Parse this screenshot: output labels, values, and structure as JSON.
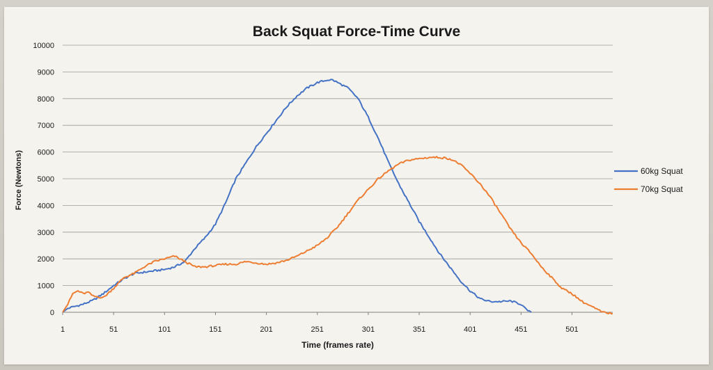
{
  "chart_data": {
    "type": "line",
    "title": "Back Squat Force-Time Curve",
    "xlabel": "Time (frames rate)",
    "ylabel": "Force (Newtons)",
    "xlim": [
      1,
      541
    ],
    "ylim": [
      0,
      10000
    ],
    "x_ticks": [
      "1",
      "51",
      "101",
      "151",
      "201",
      "251",
      "301",
      "351",
      "401",
      "451",
      "501"
    ],
    "y_ticks": [
      "0",
      "1000",
      "2000",
      "3000",
      "4000",
      "5000",
      "6000",
      "7000",
      "8000",
      "9000",
      "10000"
    ],
    "grid": true,
    "legend_position": "right",
    "series": [
      {
        "name": "60kg Squat",
        "color": "#4472c4",
        "x": [
          1,
          6,
          11,
          21,
          31,
          41,
          51,
          61,
          71,
          81,
          91,
          101,
          111,
          121,
          131,
          141,
          151,
          161,
          171,
          181,
          191,
          201,
          211,
          221,
          231,
          241,
          251,
          261,
          266,
          271,
          281,
          291,
          301,
          311,
          321,
          331,
          341,
          351,
          361,
          371,
          381,
          391,
          401,
          411,
          421,
          431,
          441,
          451,
          456,
          461
        ],
        "values": [
          0,
          150,
          200,
          300,
          450,
          700,
          1000,
          1250,
          1450,
          1500,
          1550,
          1600,
          1700,
          1900,
          2400,
          2800,
          3300,
          4100,
          5000,
          5600,
          6200,
          6700,
          7200,
          7700,
          8100,
          8400,
          8600,
          8700,
          8700,
          8600,
          8400,
          8000,
          7300,
          6500,
          5600,
          4800,
          4100,
          3400,
          2800,
          2200,
          1700,
          1200,
          800,
          500,
          400,
          400,
          420,
          300,
          100,
          0
        ]
      },
      {
        "name": "70kg Squat",
        "color": "#ed7d31",
        "x": [
          1,
          6,
          11,
          16,
          21,
          26,
          31,
          41,
          51,
          61,
          71,
          81,
          91,
          101,
          111,
          121,
          131,
          141,
          151,
          161,
          171,
          181,
          191,
          201,
          211,
          221,
          231,
          241,
          251,
          261,
          271,
          281,
          291,
          301,
          311,
          321,
          331,
          341,
          351,
          361,
          371,
          381,
          391,
          401,
          411,
          421,
          431,
          441,
          451,
          461,
          471,
          481,
          491,
          501,
          511,
          521,
          531,
          541
        ],
        "values": [
          0,
          300,
          700,
          800,
          700,
          750,
          600,
          550,
          900,
          1300,
          1450,
          1700,
          1900,
          2000,
          2100,
          1900,
          1700,
          1700,
          1750,
          1800,
          1800,
          1900,
          1850,
          1800,
          1850,
          1950,
          2100,
          2300,
          2500,
          2800,
          3200,
          3700,
          4200,
          4600,
          5000,
          5300,
          5550,
          5700,
          5750,
          5800,
          5800,
          5750,
          5550,
          5200,
          4800,
          4300,
          3700,
          3100,
          2600,
          2200,
          1700,
          1300,
          900,
          700,
          400,
          200,
          0,
          -50
        ]
      }
    ]
  }
}
